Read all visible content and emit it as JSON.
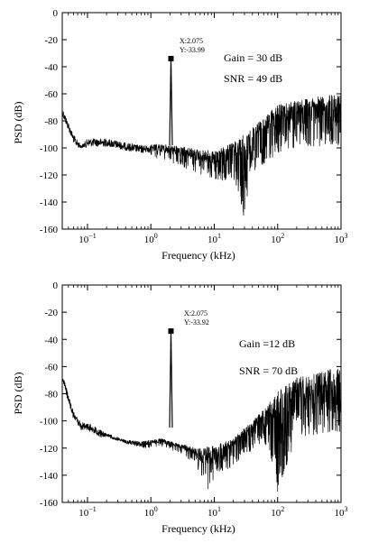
{
  "chart_data": [
    {
      "type": "line",
      "title": "",
      "xlabel": "Frequency (kHz)",
      "ylabel": "PSD (dB)",
      "x_scale": "log",
      "xlim": [
        0.04,
        1000
      ],
      "ylim": [
        -160,
        0
      ],
      "x_ticks": [
        {
          "value": 0.1,
          "label_base": "10",
          "label_exp": "−1"
        },
        {
          "value": 1,
          "label_base": "10",
          "label_exp": "0"
        },
        {
          "value": 10,
          "label_base": "10",
          "label_exp": "1"
        },
        {
          "value": 100,
          "label_base": "10",
          "label_exp": "2"
        },
        {
          "value": 1000,
          "label_base": "10",
          "label_exp": "3"
        }
      ],
      "y_ticks": [
        0,
        -20,
        -40,
        -60,
        -80,
        -100,
        -120,
        -140,
        -160
      ],
      "y_tick_labels": [
        "0",
        "-20",
        "-40",
        "-60",
        "-80",
        "-100",
        "-120",
        "-140",
        "-160"
      ],
      "annotations": [
        "Gain = 30 dB",
        "SNR = 49 dB"
      ],
      "peak": {
        "x": 2.075,
        "y": -33.99,
        "label_x": "X:2.075",
        "label_y": "Y:-33.99"
      },
      "series": [
        {
          "color": "#000000",
          "envelope": [
            [
              0.04,
              -70
            ],
            [
              0.06,
              -90
            ],
            [
              0.08,
              -98
            ],
            [
              0.1,
              -93
            ],
            [
              0.2,
              -93
            ],
            [
              0.4,
              -96
            ],
            [
              0.7,
              -98
            ],
            [
              1.5,
              -97
            ],
            [
              3,
              -99
            ],
            [
              6,
              -101
            ],
            [
              10,
              -102
            ],
            [
              20,
              -96
            ],
            [
              40,
              -85
            ],
            [
              70,
              -75
            ],
            [
              100,
              -68
            ],
            [
              200,
              -64
            ],
            [
              1000,
              -60
            ]
          ],
          "noise_floor_dips": [
            [
              0.2,
              -100
            ],
            [
              0.5,
              -106
            ],
            [
              0.8,
              -110
            ],
            [
              1.2,
              -108
            ],
            [
              3,
              -114
            ],
            [
              5,
              -118
            ],
            [
              8,
              -122
            ],
            [
              12,
              -125
            ],
            [
              20,
              -122
            ],
            [
              29,
              -150
            ],
            [
              40,
              -118
            ],
            [
              70,
              -110
            ],
            [
              100,
              -104
            ],
            [
              200,
              -100
            ],
            [
              1000,
              -98
            ]
          ],
          "spike": {
            "x": 2.075,
            "base": -98,
            "top": -34
          }
        }
      ]
    },
    {
      "type": "line",
      "title": "",
      "xlabel": "Frequency (kHz)",
      "ylabel": "PSD (dB)",
      "x_scale": "log",
      "xlim": [
        0.04,
        1000
      ],
      "ylim": [
        -160,
        0
      ],
      "x_ticks": [
        {
          "value": 0.1,
          "label_base": "10",
          "label_exp": "−1"
        },
        {
          "value": 1,
          "label_base": "10",
          "label_exp": "0"
        },
        {
          "value": 10,
          "label_base": "10",
          "label_exp": "1"
        },
        {
          "value": 100,
          "label_base": "10",
          "label_exp": "2"
        },
        {
          "value": 1000,
          "label_base": "10",
          "label_exp": "3"
        }
      ],
      "y_ticks": [
        0,
        -20,
        -40,
        -60,
        -80,
        -100,
        -120,
        -140,
        -160
      ],
      "y_tick_labels": [
        "0",
        "-20",
        "-40",
        "-60",
        "-80",
        "-100",
        "-120",
        "-140",
        "-160"
      ],
      "annotations": [
        "Gain =12 dB",
        "SNR = 70 dB"
      ],
      "peak": {
        "x": 2.075,
        "y": -33.92,
        "label_x": "X:2.075",
        "label_y": "Y:-33.92"
      },
      "series": [
        {
          "color": "#000000",
          "envelope": [
            [
              0.04,
              -65
            ],
            [
              0.06,
              -93
            ],
            [
              0.08,
              -101
            ],
            [
              0.1,
              -101
            ],
            [
              0.2,
              -109
            ],
            [
              0.4,
              -114
            ],
            [
              0.7,
              -115
            ],
            [
              1.5,
              -113
            ],
            [
              3,
              -117
            ],
            [
              6,
              -120
            ],
            [
              10,
              -118
            ],
            [
              20,
              -113
            ],
            [
              40,
              -100
            ],
            [
              70,
              -88
            ],
            [
              100,
              -78
            ],
            [
              200,
              -68
            ],
            [
              1000,
              -60
            ]
          ],
          "noise_floor_dips": [
            [
              0.2,
              -112
            ],
            [
              0.5,
              -118
            ],
            [
              0.8,
              -120
            ],
            [
              1.5,
              -119
            ],
            [
              3,
              -124
            ],
            [
              5,
              -132
            ],
            [
              8,
              -150
            ],
            [
              12,
              -138
            ],
            [
              20,
              -134
            ],
            [
              40,
              -122
            ],
            [
              70,
              -118
            ],
            [
              100,
              -152
            ],
            [
              200,
              -112
            ],
            [
              1000,
              -108
            ]
          ],
          "spike": {
            "x": 2.075,
            "base": -105,
            "top": -34
          }
        }
      ]
    }
  ]
}
